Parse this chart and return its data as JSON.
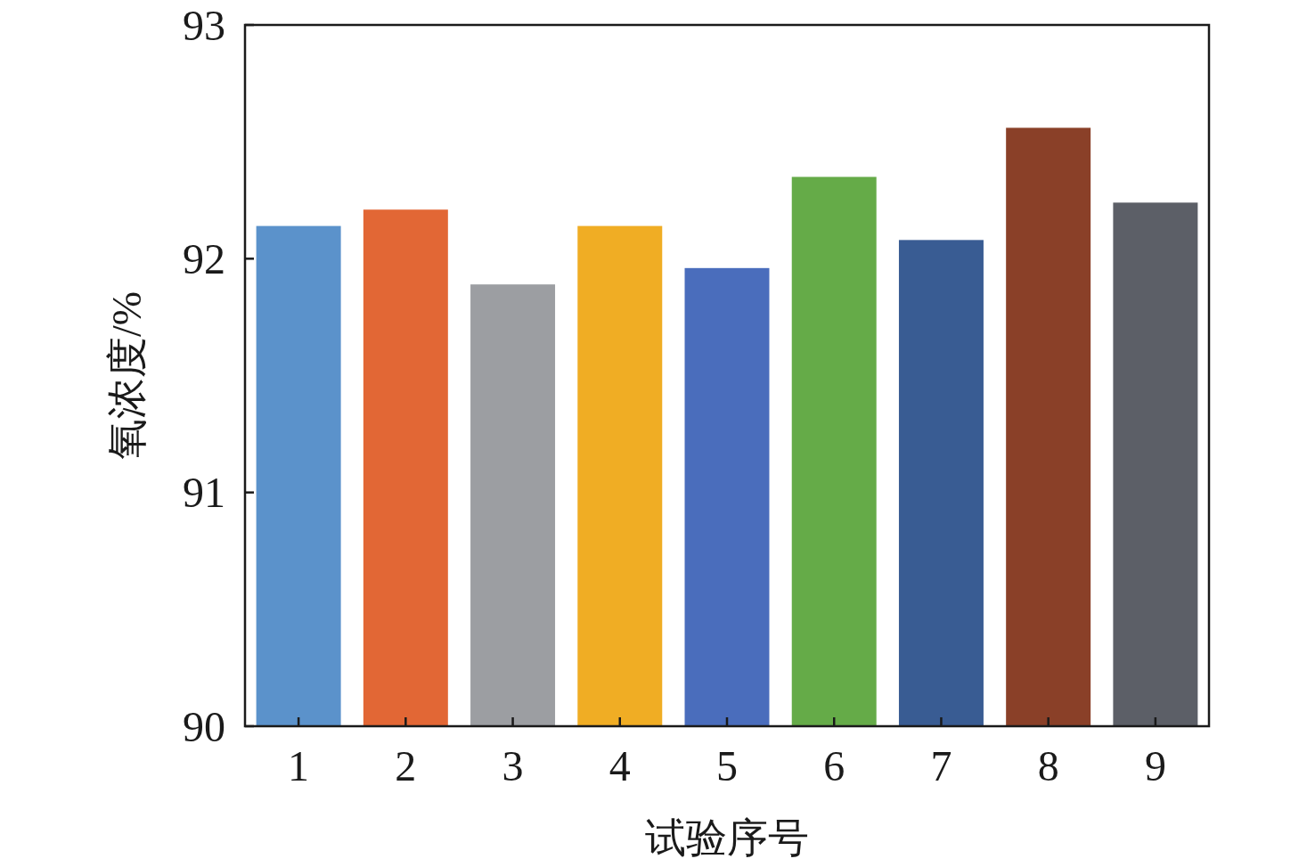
{
  "chart_data": {
    "type": "bar",
    "xlabel": "试验序号",
    "ylabel": "氧浓度/%",
    "categories": [
      "1",
      "2",
      "3",
      "4",
      "5",
      "6",
      "7",
      "8",
      "9"
    ],
    "values": [
      92.14,
      92.21,
      91.89,
      92.14,
      91.96,
      92.35,
      92.08,
      92.56,
      92.24
    ],
    "colors": [
      "#5b92cb",
      "#e26735",
      "#9c9ea2",
      "#f0ad24",
      "#4a6dbc",
      "#65ab48",
      "#395c93",
      "#8a4028",
      "#5c5f67"
    ],
    "ylim": [
      90,
      93
    ],
    "yticks": [
      90,
      91,
      92,
      93
    ]
  }
}
